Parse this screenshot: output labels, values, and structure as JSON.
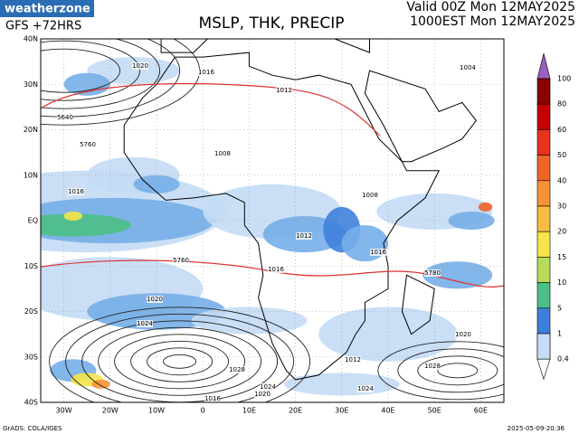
{
  "header": {
    "brand": "weatherzone",
    "model": "GFS +72HRS",
    "title": "MSLP, THK, PRECIP",
    "valid_utc": "Valid 00Z Mon 12MAY2025",
    "valid_local": "1000EST Mon 12MAY2025"
  },
  "lat_labels": [
    "40N",
    "30N",
    "20N",
    "10N",
    "EQ",
    "10S",
    "20S",
    "30S",
    "40S"
  ],
  "lon_labels": [
    "30W",
    "20W",
    "10W",
    "0",
    "10E",
    "20E",
    "30E",
    "40E",
    "50E",
    "60E"
  ],
  "legend": {
    "levels": [
      {
        "label": "100",
        "color": "#8b0000"
      },
      {
        "label": "80",
        "color": "#c40000"
      },
      {
        "label": "60",
        "color": "#e8321e"
      },
      {
        "label": "50",
        "color": "#f06428"
      },
      {
        "label": "40",
        "color": "#f59236"
      },
      {
        "label": "30",
        "color": "#f8bc42"
      },
      {
        "label": "20",
        "color": "#f6e44a"
      },
      {
        "label": "15",
        "color": "#b6dc5a"
      },
      {
        "label": "10",
        "color": "#4cbf86"
      },
      {
        "label": "5",
        "color": "#3f7fdc"
      },
      {
        "label": "1",
        "color": "#76aee8"
      },
      {
        "label": "0.4",
        "color": "#c4dcf5"
      }
    ],
    "top_color": "#9b5fc0"
  },
  "contour_labels": [
    "1020",
    "1016",
    "1012",
    "1008",
    "1004",
    "1016",
    "1020",
    "1024",
    "1028",
    "1024",
    "1020",
    "1016",
    "1012",
    "1008",
    "1016",
    "1020",
    "1024",
    "1028",
    "1012",
    "1016",
    "5760",
    "5760",
    "5640",
    "5780"
  ],
  "footer": {
    "source": "GrADS: COLA/IGES",
    "timestamp": "2025-05-09-20:36"
  }
}
